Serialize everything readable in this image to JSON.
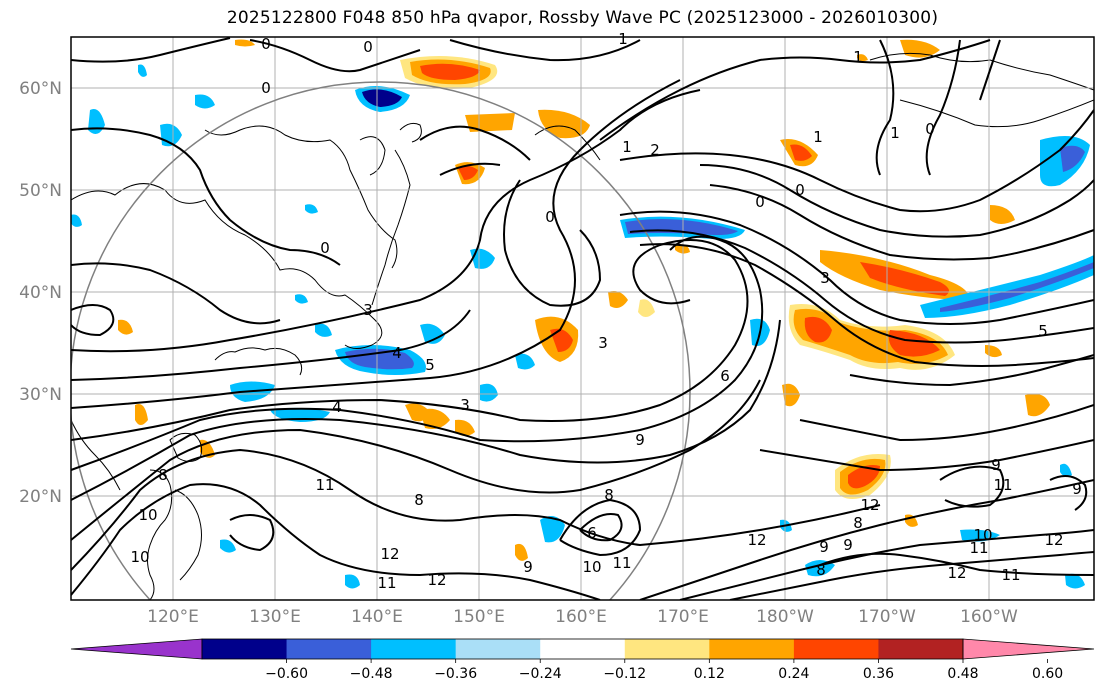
{
  "title": "2025122800 F048 850 hPa qvapor, Rossby Wave PC (2025123000 - 2026010300)",
  "lat_labels": [
    "60°N",
    "50°N",
    "40°N",
    "30°N",
    "20°N"
  ],
  "lon_labels": [
    "120°E",
    "130°E",
    "140°E",
    "150°E",
    "160°E",
    "170°E",
    "180°W",
    "170°W",
    "160°W"
  ],
  "colorbar": {
    "colors": [
      "#9933cc",
      "#00008b",
      "#3a5fd9",
      "#00bfff",
      "#aadff7",
      "#ffffff",
      "#ffe680",
      "#ffa500",
      "#ff4500",
      "#b22222",
      "#ff88aa"
    ],
    "tick_labels": [
      "−0.60",
      "−0.48",
      "−0.36",
      "−0.24",
      "−0.12",
      "0.12",
      "0.24",
      "0.36",
      "0.48",
      "0.60"
    ]
  },
  "contour_labels": [
    {
      "text": "0"
    },
    {
      "text": "0"
    },
    {
      "text": "0"
    },
    {
      "text": "1"
    },
    {
      "text": "1"
    },
    {
      "text": "1"
    },
    {
      "text": "1"
    },
    {
      "text": "0"
    },
    {
      "text": "0"
    },
    {
      "text": "0"
    },
    {
      "text": "0"
    },
    {
      "text": "2"
    },
    {
      "text": "1"
    },
    {
      "text": "0"
    },
    {
      "text": "3"
    },
    {
      "text": "3"
    },
    {
      "text": "4"
    },
    {
      "text": "5"
    },
    {
      "text": "4"
    },
    {
      "text": "3"
    },
    {
      "text": "3"
    },
    {
      "text": "5"
    },
    {
      "text": "6"
    },
    {
      "text": "9"
    },
    {
      "text": "11"
    },
    {
      "text": "8"
    },
    {
      "text": "8"
    },
    {
      "text": "6"
    },
    {
      "text": "8"
    },
    {
      "text": "10"
    },
    {
      "text": "10"
    },
    {
      "text": "12"
    },
    {
      "text": "11"
    },
    {
      "text": "12"
    },
    {
      "text": "9"
    },
    {
      "text": "10"
    },
    {
      "text": "11"
    },
    {
      "text": "12"
    },
    {
      "text": "9"
    },
    {
      "text": "8"
    },
    {
      "text": "12"
    },
    {
      "text": "10"
    },
    {
      "text": "11"
    },
    {
      "text": "12"
    },
    {
      "text": "11"
    },
    {
      "text": "9"
    },
    {
      "text": "8"
    },
    {
      "text": "9"
    },
    {
      "text": "11"
    },
    {
      "text": "12"
    },
    {
      "text": "9"
    }
  ]
}
